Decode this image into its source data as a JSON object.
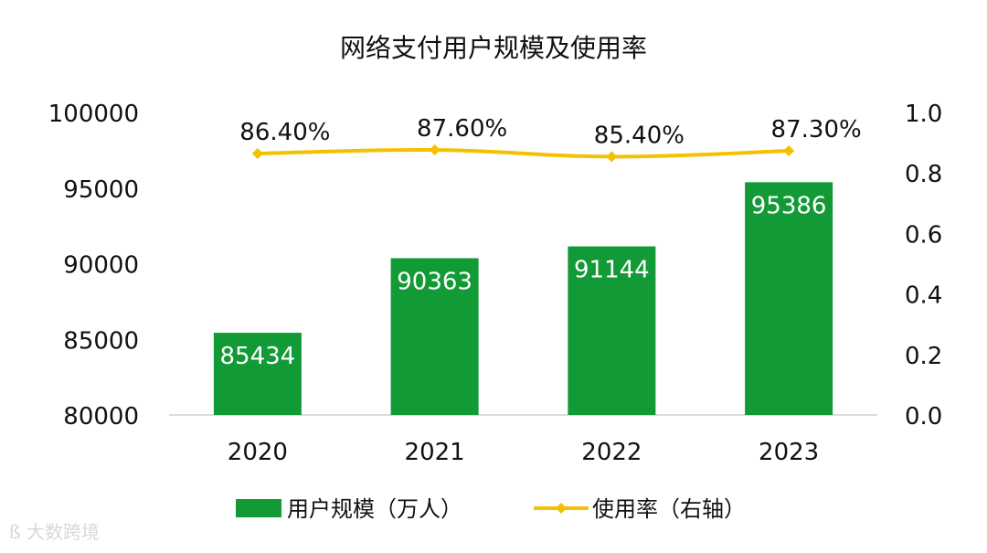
{
  "chart_data": {
    "type": "bar",
    "title": "网络支付用户规模及使用率",
    "categories": [
      "2020",
      "2021",
      "2022",
      "2023"
    ],
    "series": [
      {
        "name": "用户规模（万人）",
        "type": "bar",
        "axis": "left",
        "values": [
          85434,
          90363,
          91144,
          95386
        ],
        "labels": [
          "85434",
          "90363",
          "91144",
          "95386"
        ],
        "color": "#129a37"
      },
      {
        "name": "使用率（右轴）",
        "type": "line",
        "axis": "right",
        "values": [
          0.864,
          0.876,
          0.854,
          0.873
        ],
        "labels": [
          "86.40%",
          "87.60%",
          "85.40%",
          "87.30%"
        ],
        "color": "#f5c000"
      }
    ],
    "y_left": {
      "min": 80000,
      "max": 100000,
      "ticks": [
        "80000",
        "85000",
        "90000",
        "95000",
        "100000"
      ]
    },
    "y_right": {
      "min": 0,
      "max": 1.0,
      "ticks": [
        "0.0",
        "0.2",
        "0.4",
        "0.6",
        "0.8",
        "1.0"
      ]
    },
    "legend": "bottom-center",
    "grid": false
  },
  "watermark": {
    "text": "大数跨境",
    "logo": "大数跨境"
  }
}
